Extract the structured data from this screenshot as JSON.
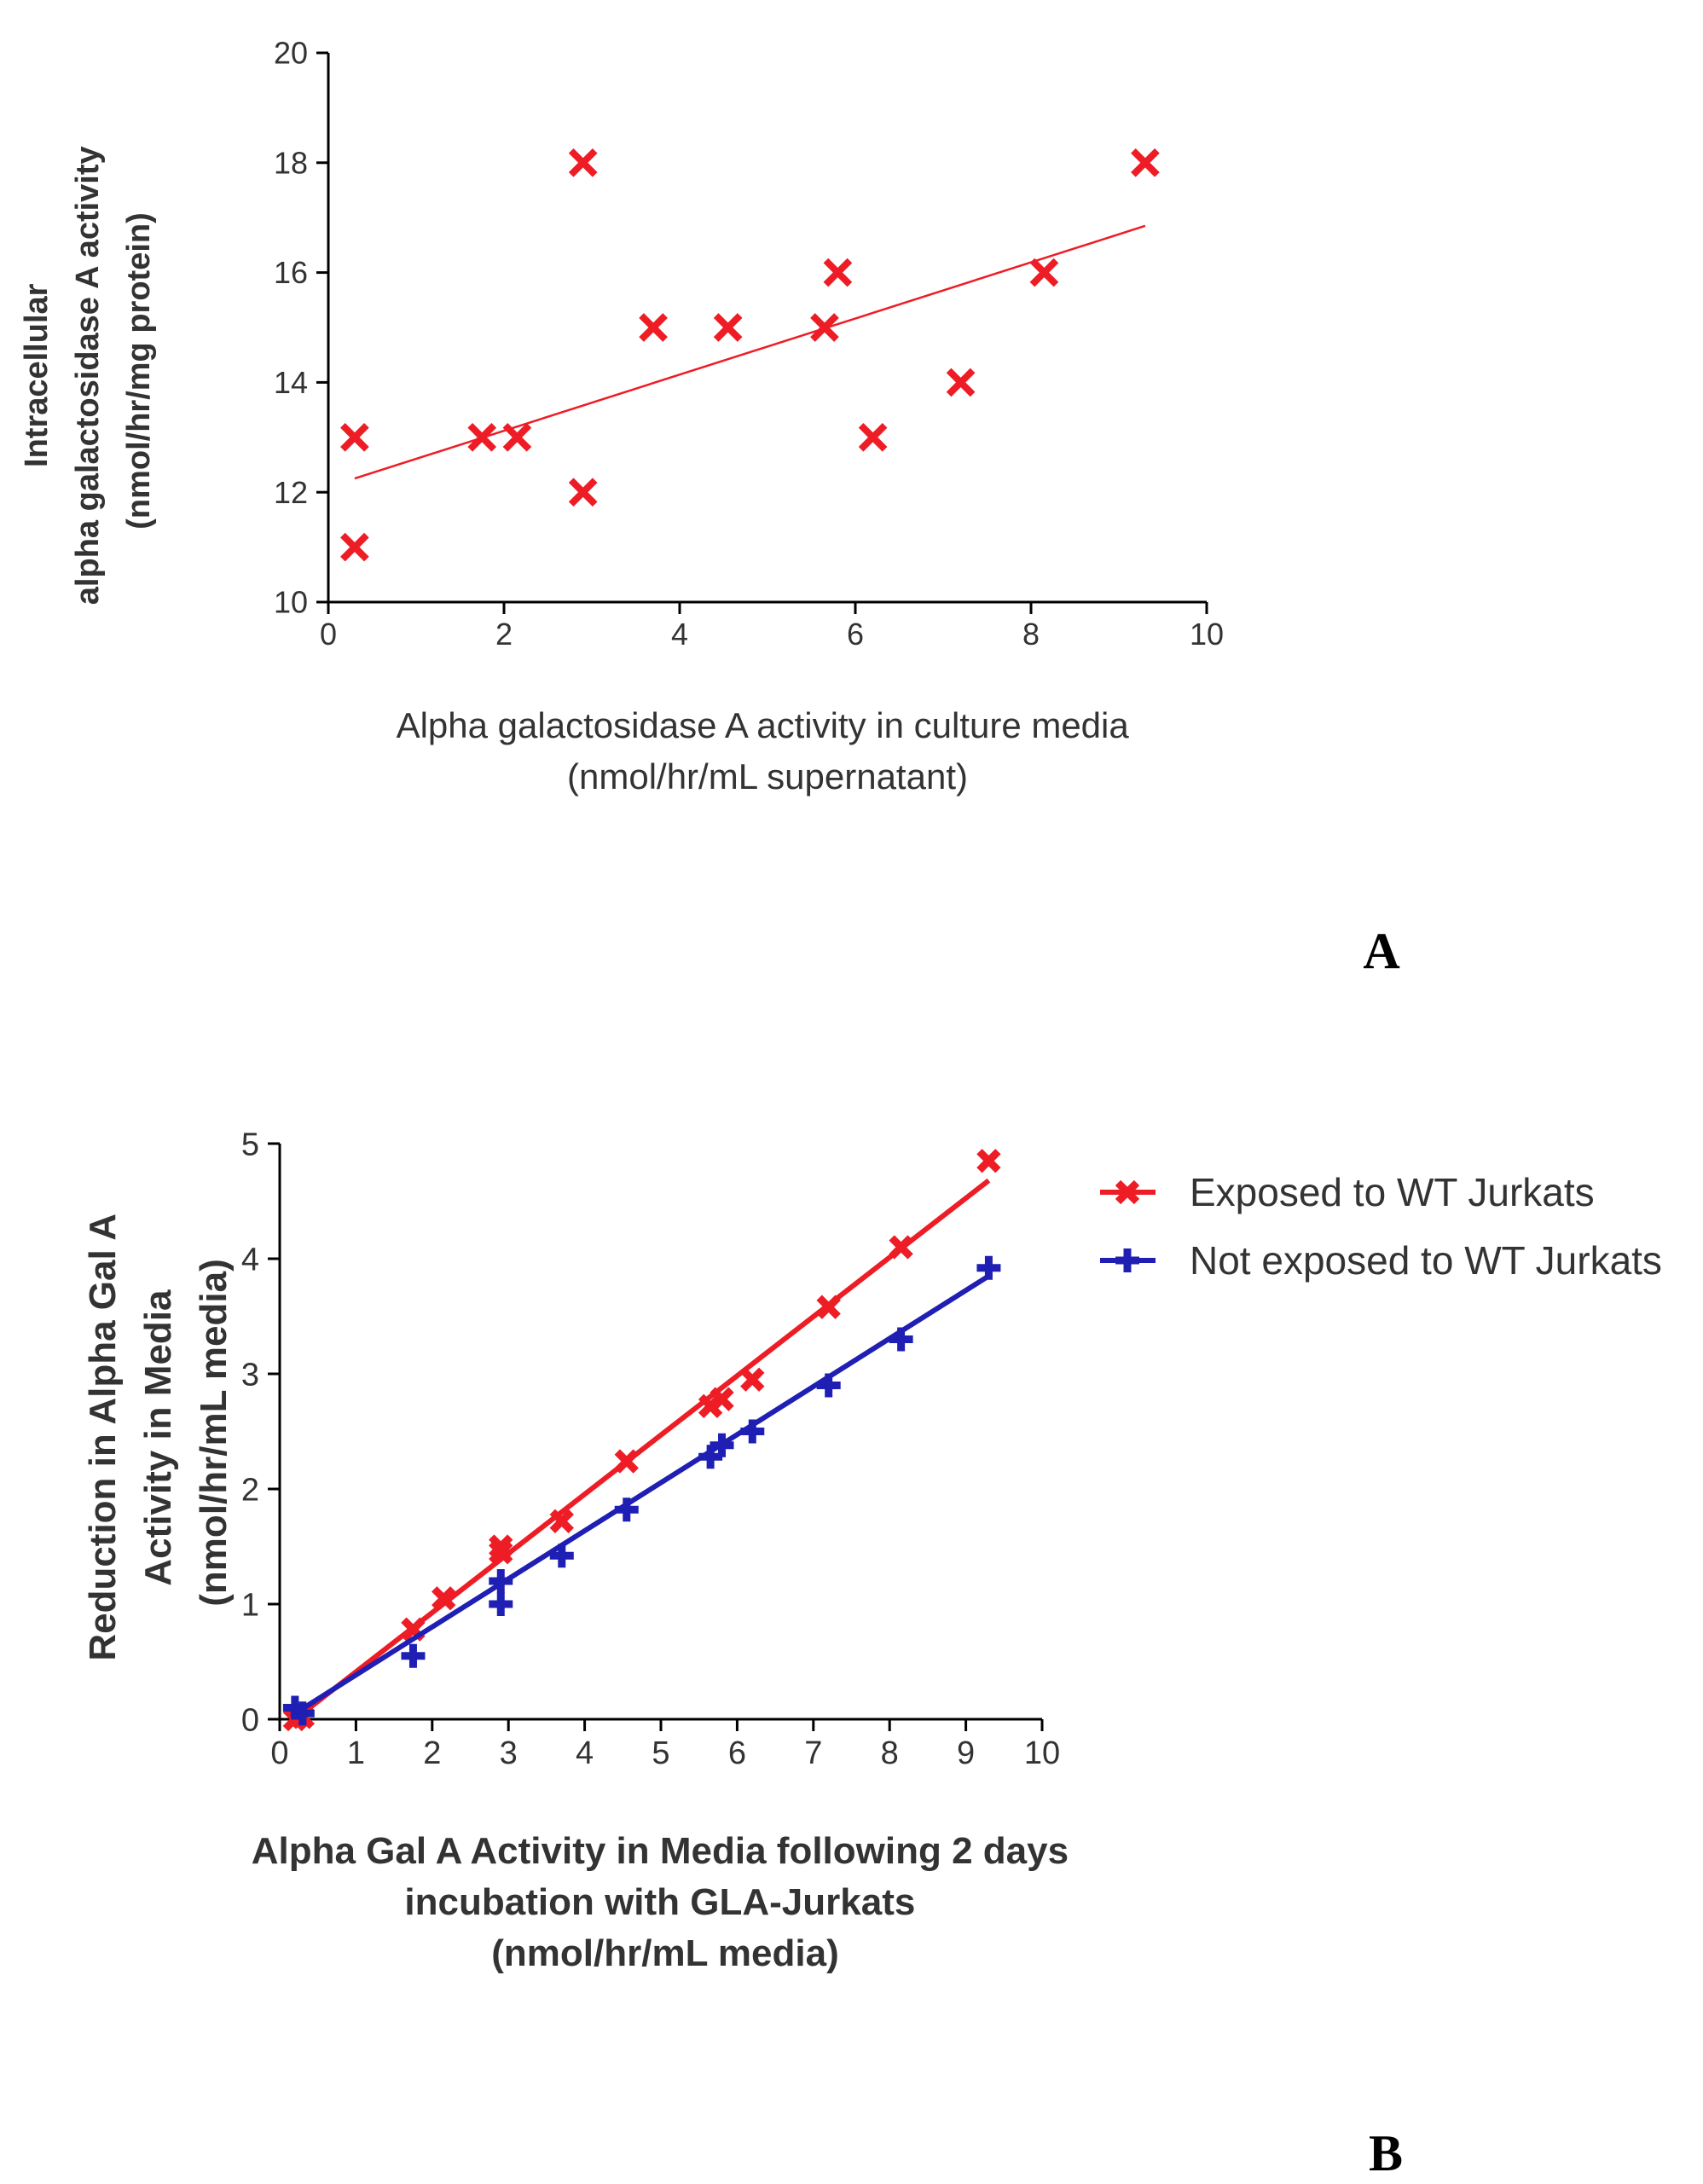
{
  "panels": {
    "a_label": "A",
    "b_label": "B"
  },
  "chart_data": [
    {
      "type": "scatter",
      "panel": "A",
      "title": "",
      "xlabel": [
        "Alpha galactosidase A activity in culture media",
        "(nmol/hr/mL supernatant)"
      ],
      "ylabel": [
        "Intracellular",
        "alpha galactosidase A activity",
        "(nmol/hr/mg protein)"
      ],
      "xlim": [
        0,
        10
      ],
      "ylim": [
        10,
        20
      ],
      "xticks": [
        "0",
        "2",
        "4",
        "6",
        "8",
        "10"
      ],
      "yticks": [
        "10",
        "12",
        "14",
        "16",
        "18",
        "20"
      ],
      "marker_color": "#ee1c25",
      "points": [
        {
          "x": 0.3,
          "y": 11
        },
        {
          "x": 0.3,
          "y": 13
        },
        {
          "x": 1.75,
          "y": 13
        },
        {
          "x": 2.15,
          "y": 13
        },
        {
          "x": 2.9,
          "y": 12
        },
        {
          "x": 2.9,
          "y": 18
        },
        {
          "x": 3.7,
          "y": 15
        },
        {
          "x": 4.55,
          "y": 15
        },
        {
          "x": 5.65,
          "y": 15
        },
        {
          "x": 5.8,
          "y": 16
        },
        {
          "x": 6.2,
          "y": 13
        },
        {
          "x": 7.2,
          "y": 14
        },
        {
          "x": 8.15,
          "y": 16
        },
        {
          "x": 9.3,
          "y": 18
        }
      ],
      "trendline": {
        "x": [
          0.3,
          9.3
        ],
        "y": [
          12.25,
          16.85
        ]
      }
    },
    {
      "type": "line",
      "panel": "B",
      "title": "",
      "xlabel": [
        "Alpha Gal A Activity in Media following 2 days",
        "incubation with GLA-Jurkats",
        "(nmol/hr/mL media)"
      ],
      "ylabel": [
        "Reduction in Alpha Gal A",
        "Activity in Media",
        "(nmol/hr/mL media)"
      ],
      "xlim": [
        0,
        10
      ],
      "ylim": [
        0,
        5
      ],
      "xticks": [
        "0",
        "1",
        "2",
        "3",
        "4",
        "5",
        "6",
        "7",
        "8",
        "9",
        "10"
      ],
      "yticks": [
        "0",
        "1",
        "2",
        "3",
        "4",
        "5"
      ],
      "legend_position": "top-right",
      "series": [
        {
          "name": "Exposed to WT Jurkats",
          "color": "#ee1c25",
          "marker": "x",
          "points": [
            {
              "x": 0.2,
              "y": 0.0
            },
            {
              "x": 0.3,
              "y": 0.02
            },
            {
              "x": 1.75,
              "y": 0.78
            },
            {
              "x": 2.15,
              "y": 1.05
            },
            {
              "x": 2.9,
              "y": 1.45
            },
            {
              "x": 2.9,
              "y": 1.5
            },
            {
              "x": 3.7,
              "y": 1.72
            },
            {
              "x": 4.55,
              "y": 2.24
            },
            {
              "x": 5.65,
              "y": 2.72
            },
            {
              "x": 5.8,
              "y": 2.78
            },
            {
              "x": 6.2,
              "y": 2.95
            },
            {
              "x": 7.2,
              "y": 3.58
            },
            {
              "x": 8.15,
              "y": 4.1
            },
            {
              "x": 9.3,
              "y": 4.85
            }
          ],
          "fit": {
            "x": [
              0.2,
              9.3
            ],
            "y": [
              0.0,
              4.68
            ]
          }
        },
        {
          "name": "Not exposed to WT Jurkats",
          "color": "#1f1fb4",
          "marker": "plus",
          "points": [
            {
              "x": 0.2,
              "y": 0.1
            },
            {
              "x": 0.3,
              "y": 0.05
            },
            {
              "x": 1.75,
              "y": 0.55
            },
            {
              "x": 2.9,
              "y": 1.0
            },
            {
              "x": 2.9,
              "y": 1.2
            },
            {
              "x": 3.7,
              "y": 1.42
            },
            {
              "x": 4.55,
              "y": 1.82
            },
            {
              "x": 5.65,
              "y": 2.28
            },
            {
              "x": 5.8,
              "y": 2.38
            },
            {
              "x": 6.2,
              "y": 2.5
            },
            {
              "x": 7.2,
              "y": 2.9
            },
            {
              "x": 8.15,
              "y": 3.3
            },
            {
              "x": 9.3,
              "y": 3.92
            }
          ],
          "fit": {
            "x": [
              0.2,
              9.3
            ],
            "y": [
              0.05,
              3.85
            ]
          }
        }
      ]
    }
  ]
}
